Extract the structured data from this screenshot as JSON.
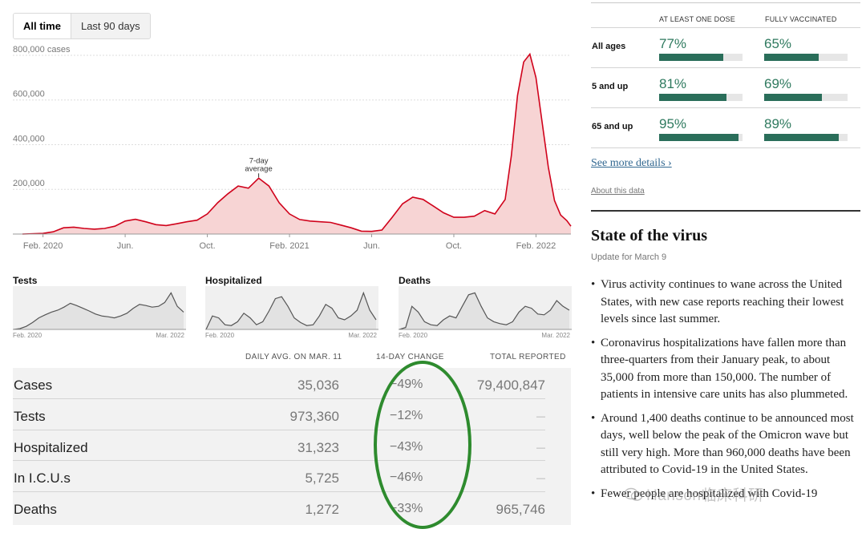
{
  "toggle": {
    "all_time": "All time",
    "last_90": "Last 90 days"
  },
  "chart_data": [
    {
      "type": "area",
      "title": "",
      "y_unit_label": "800,000 cases",
      "ylabels": [
        "600,000",
        "400,000",
        "200,000"
      ],
      "ylim": [
        0,
        850000
      ],
      "yticks": [
        200000,
        400000,
        600000,
        800000
      ],
      "xlabels": [
        "Feb. 2020",
        "Jun.",
        "Oct.",
        "Feb. 2021",
        "Jun.",
        "Oct.",
        "Feb. 2022"
      ],
      "xticks": [
        0.5,
        4.5,
        8.5,
        12.5,
        16.5,
        20.5,
        24.5
      ],
      "xlim": [
        -0.5,
        26.2
      ],
      "annotation": {
        "line1": "7-day",
        "line2": "average",
        "x": 11.0,
        "y": 250000
      },
      "series": [
        {
          "name": "7-day average cases",
          "x": [
            -0.5,
            0.5,
            1.0,
            1.5,
            2.0,
            2.5,
            3.0,
            3.5,
            4.0,
            4.5,
            5.0,
            5.5,
            6.0,
            6.5,
            7.0,
            7.5,
            8.0,
            8.5,
            9.0,
            9.5,
            10.0,
            10.5,
            11.0,
            11.5,
            12.0,
            12.5,
            13.0,
            13.5,
            14.0,
            14.5,
            15.0,
            15.5,
            16.0,
            16.5,
            17.0,
            17.5,
            18.0,
            18.5,
            19.0,
            19.5,
            20.0,
            20.5,
            21.0,
            21.5,
            22.0,
            22.5,
            23.0,
            23.3,
            23.6,
            23.9,
            24.2,
            24.5,
            24.8,
            25.1,
            25.4,
            25.7,
            26.0,
            26.2
          ],
          "y": [
            0,
            3000,
            10000,
            28000,
            31000,
            25000,
            22000,
            25000,
            35000,
            58000,
            66000,
            55000,
            42000,
            38000,
            46000,
            55000,
            62000,
            90000,
            140000,
            180000,
            215000,
            205000,
            250000,
            215000,
            140000,
            90000,
            65000,
            58000,
            55000,
            52000,
            40000,
            28000,
            13000,
            12000,
            18000,
            75000,
            135000,
            165000,
            155000,
            125000,
            95000,
            75000,
            75000,
            80000,
            105000,
            90000,
            155000,
            350000,
            620000,
            770000,
            805000,
            700000,
            500000,
            300000,
            150000,
            85000,
            60000,
            35000
          ]
        }
      ]
    },
    {
      "type": "area",
      "title": "Tests",
      "xlabels": [
        "Feb. 2020",
        "Mar. 2022"
      ],
      "series": [
        {
          "name": "Tests",
          "values": [
            0,
            0.02,
            0.08,
            0.18,
            0.3,
            0.38,
            0.45,
            0.5,
            0.58,
            0.68,
            0.62,
            0.55,
            0.48,
            0.4,
            0.35,
            0.33,
            0.3,
            0.35,
            0.42,
            0.55,
            0.65,
            0.62,
            0.58,
            0.6,
            0.7,
            0.95,
            0.6,
            0.45
          ]
        }
      ]
    },
    {
      "type": "area",
      "title": "Hospitalized",
      "xlabels": [
        "Feb. 2020",
        "Mar. 2022"
      ],
      "series": [
        {
          "name": "Hospitalized",
          "values": [
            0,
            0.35,
            0.3,
            0.12,
            0.1,
            0.2,
            0.42,
            0.3,
            0.12,
            0.2,
            0.48,
            0.8,
            0.85,
            0.6,
            0.3,
            0.18,
            0.1,
            0.12,
            0.35,
            0.65,
            0.55,
            0.3,
            0.25,
            0.35,
            0.5,
            0.95,
            0.5,
            0.25
          ]
        }
      ]
    },
    {
      "type": "area",
      "title": "Deaths",
      "xlabels": [
        "Feb. 2020",
        "Mar. 2022"
      ],
      "series": [
        {
          "name": "Deaths",
          "values": [
            0,
            0.05,
            0.6,
            0.45,
            0.2,
            0.12,
            0.1,
            0.25,
            0.35,
            0.3,
            0.6,
            0.9,
            0.95,
            0.6,
            0.3,
            0.2,
            0.15,
            0.12,
            0.2,
            0.45,
            0.6,
            0.55,
            0.4,
            0.38,
            0.5,
            0.75,
            0.6,
            0.5
          ]
        }
      ]
    }
  ],
  "stats": {
    "headers": {
      "daily": "DAILY AVG. ON MAR. 11",
      "change": "14-DAY CHANGE",
      "total": "TOTAL REPORTED"
    },
    "rows": [
      {
        "label": "Cases",
        "daily": "35,036",
        "change": "−49%",
        "total": "79,400,847"
      },
      {
        "label": "Tests",
        "daily": "973,360",
        "change": "−12%",
        "total": "—"
      },
      {
        "label": "Hospitalized",
        "daily": "31,323",
        "change": "−43%",
        "total": "—"
      },
      {
        "label": "In I.C.U.s",
        "daily": "5,725",
        "change": "−46%",
        "total": "—"
      },
      {
        "label": "Deaths",
        "daily": "1,272",
        "change": "−33%",
        "total": "965,746"
      }
    ]
  },
  "vaccination": {
    "headers": {
      "one_dose": "AT LEAST ONE DOSE",
      "fully": "FULLY VACCINATED"
    },
    "rows": [
      {
        "label": "All ages",
        "one_dose_pct": "77%",
        "one_dose_value": 77,
        "fully_pct": "65%",
        "fully_value": 65
      },
      {
        "label": "5 and up",
        "one_dose_pct": "81%",
        "one_dose_value": 81,
        "fully_pct": "69%",
        "fully_value": 69
      },
      {
        "label": "65 and up",
        "one_dose_pct": "95%",
        "one_dose_value": 95,
        "fully_pct": "89%",
        "fully_value": 89
      }
    ],
    "see_more": "See more details ›",
    "about": "About this data"
  },
  "state_of_virus": {
    "title": "State of the virus",
    "update": "Update for March 9",
    "bullets": [
      "Virus activity continues to wane across the United States, with new case reports reaching their lowest levels since last summer.",
      "Coronavirus hospitalizations have fallen more than three-quarters from their January peak, to about 35,000 from more than 150,000. The number of patients in intensive care units has also plummeted.",
      "Around 1,400 deaths continue to be announced most days, well below the peak of the Omicron wave but still very high. More than 960,000 deaths have been attributed to Covid-19 in the United States.",
      "Fewer people are hospitalized with Covid-19"
    ]
  },
  "watermark": "Hanson临床科研",
  "colors": {
    "line": "#d0021b",
    "area": "#f7d4d4",
    "vax_fill": "#2a6e5a",
    "vax_text": "#2f7a5f",
    "circle": "#2e8b2e"
  }
}
